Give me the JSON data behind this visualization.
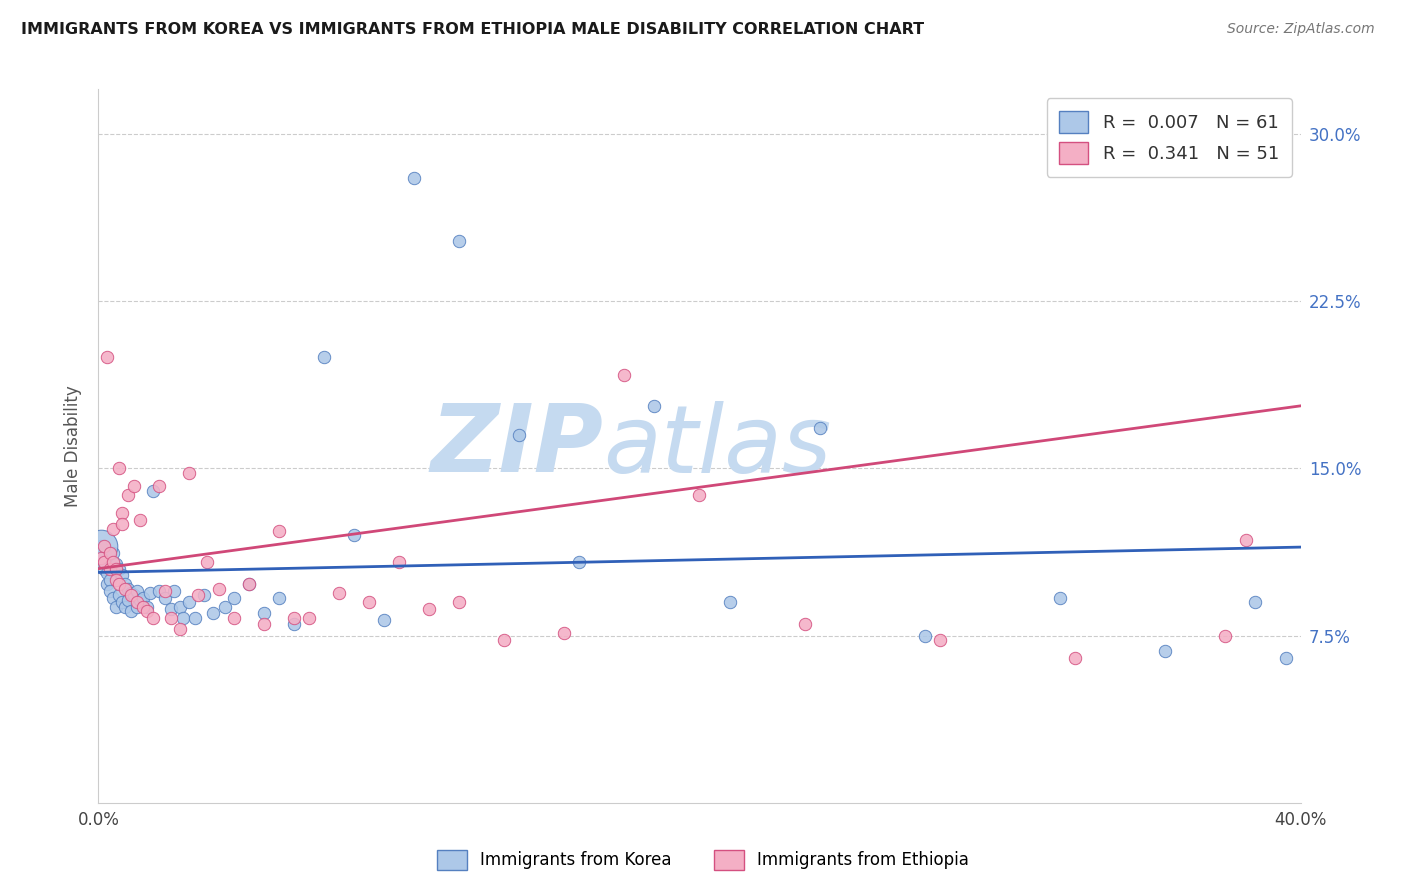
{
  "title": "IMMIGRANTS FROM KOREA VS IMMIGRANTS FROM ETHIOPIA MALE DISABILITY CORRELATION CHART",
  "source": "Source: ZipAtlas.com",
  "ylabel": "Male Disability",
  "korea_R": 0.007,
  "korea_N": 61,
  "ethiopia_R": 0.341,
  "ethiopia_N": 51,
  "korea_color": "#adc8e8",
  "ethiopia_color": "#f4afc5",
  "korea_edge_color": "#5580c0",
  "ethiopia_edge_color": "#d45080",
  "korea_line_color": "#3060b8",
  "ethiopia_line_color": "#d04878",
  "background_color": "#ffffff",
  "watermark_text": "ZIPatlas",
  "title_color": "#1a1a1a",
  "source_color": "#777777",
  "axis_label_color": "#555555",
  "tick_color": "#4472c4",
  "grid_color": "#cccccc",
  "x_min": 0.0,
  "x_max": 0.4,
  "y_min": 0.0,
  "y_max": 0.32,
  "y_ticks": [
    0.075,
    0.15,
    0.225,
    0.3
  ],
  "y_tick_labels": [
    "7.5%",
    "15.0%",
    "22.5%",
    "30.0%"
  ],
  "x_ticks": [
    0.0,
    0.05,
    0.1,
    0.15,
    0.2,
    0.25,
    0.3,
    0.35,
    0.4
  ],
  "x_tick_labels": [
    "0.0%",
    "",
    "",
    "",
    "",
    "",
    "",
    "",
    "40.0%"
  ],
  "korea_legend": "R =  0.007   N = 61",
  "ethiopia_legend": "R =  0.341   N = 51",
  "bottom_korea": "Immigrants from Korea",
  "bottom_ethiopia": "Immigrants from Ethiopia",
  "korea_x": [
    0.001,
    0.001,
    0.002,
    0.002,
    0.003,
    0.003,
    0.004,
    0.004,
    0.005,
    0.005,
    0.006,
    0.006,
    0.007,
    0.007,
    0.008,
    0.008,
    0.009,
    0.009,
    0.01,
    0.01,
    0.011,
    0.011,
    0.012,
    0.013,
    0.013,
    0.014,
    0.015,
    0.016,
    0.017,
    0.018,
    0.02,
    0.022,
    0.024,
    0.025,
    0.027,
    0.028,
    0.03,
    0.032,
    0.035,
    0.038,
    0.042,
    0.045,
    0.05,
    0.055,
    0.06,
    0.065,
    0.075,
    0.085,
    0.095,
    0.105,
    0.12,
    0.14,
    0.16,
    0.185,
    0.21,
    0.24,
    0.275,
    0.32,
    0.355,
    0.385,
    0.395
  ],
  "korea_y": [
    0.11,
    0.115,
    0.108,
    0.105,
    0.103,
    0.098,
    0.1,
    0.095,
    0.112,
    0.092,
    0.107,
    0.088,
    0.105,
    0.093,
    0.102,
    0.09,
    0.098,
    0.088,
    0.096,
    0.091,
    0.094,
    0.086,
    0.093,
    0.095,
    0.088,
    0.091,
    0.092,
    0.088,
    0.094,
    0.14,
    0.095,
    0.092,
    0.087,
    0.095,
    0.088,
    0.083,
    0.09,
    0.083,
    0.093,
    0.085,
    0.088,
    0.092,
    0.098,
    0.085,
    0.092,
    0.08,
    0.2,
    0.12,
    0.082,
    0.28,
    0.252,
    0.165,
    0.108,
    0.178,
    0.09,
    0.168,
    0.075,
    0.092,
    0.068,
    0.09,
    0.065
  ],
  "korea_big_x": [
    0.001
  ],
  "korea_big_y": [
    0.115
  ],
  "ethiopia_x": [
    0.001,
    0.002,
    0.002,
    0.003,
    0.004,
    0.004,
    0.005,
    0.005,
    0.006,
    0.006,
    0.007,
    0.007,
    0.008,
    0.008,
    0.009,
    0.01,
    0.011,
    0.012,
    0.013,
    0.014,
    0.015,
    0.016,
    0.018,
    0.02,
    0.022,
    0.024,
    0.027,
    0.03,
    0.033,
    0.036,
    0.04,
    0.045,
    0.05,
    0.055,
    0.06,
    0.065,
    0.07,
    0.08,
    0.09,
    0.1,
    0.11,
    0.12,
    0.135,
    0.155,
    0.175,
    0.2,
    0.235,
    0.28,
    0.325,
    0.375,
    0.382
  ],
  "ethiopia_y": [
    0.11,
    0.108,
    0.115,
    0.2,
    0.112,
    0.105,
    0.108,
    0.123,
    0.105,
    0.1,
    0.15,
    0.098,
    0.13,
    0.125,
    0.096,
    0.138,
    0.093,
    0.142,
    0.09,
    0.127,
    0.088,
    0.086,
    0.083,
    0.142,
    0.095,
    0.083,
    0.078,
    0.148,
    0.093,
    0.108,
    0.096,
    0.083,
    0.098,
    0.08,
    0.122,
    0.083,
    0.083,
    0.094,
    0.09,
    0.108,
    0.087,
    0.09,
    0.073,
    0.076,
    0.192,
    0.138,
    0.08,
    0.073,
    0.065,
    0.075,
    0.118
  ]
}
